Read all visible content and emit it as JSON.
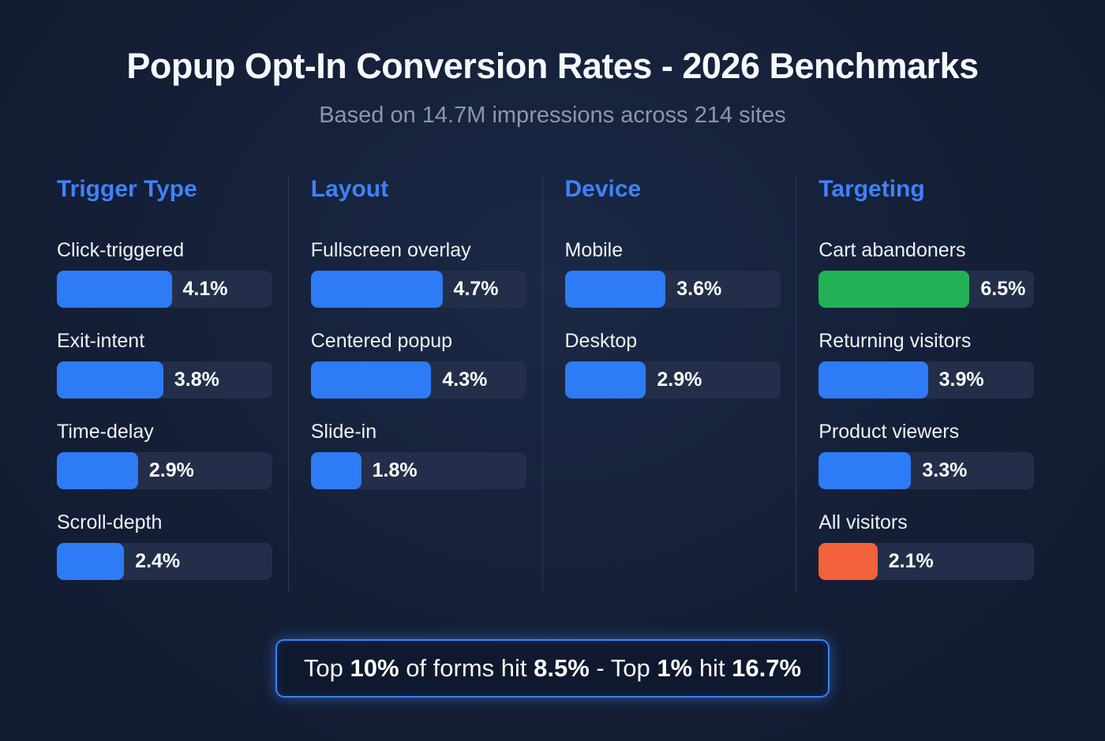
{
  "page": {
    "title": "Popup Opt-In Conversion Rates - 2026 Benchmarks",
    "subtitle": "Based on 14.7M impressions across 214 sites"
  },
  "colors": {
    "blue": "#2e7bf6",
    "green": "#22b155",
    "orange": "#f4613d",
    "accent": "#3b82f6",
    "track": "#232f4a",
    "heading": "#3f82f7",
    "background": "#141f37"
  },
  "chart_data": {
    "type": "bar",
    "title": "Popup Opt-In Conversion Rates - 2026 Benchmarks",
    "subtitle": "Based on 14.7M impressions across 214 sites",
    "unit": "%",
    "orientation": "horizontal",
    "groups": [
      {
        "name": "Trigger Type",
        "bars": [
          {
            "label": "Click-triggered",
            "value": 4.1,
            "display": "4.1%",
            "color": "blue"
          },
          {
            "label": "Exit-intent",
            "value": 3.8,
            "display": "3.8%",
            "color": "blue"
          },
          {
            "label": "Time-delay",
            "value": 2.9,
            "display": "2.9%",
            "color": "blue"
          },
          {
            "label": "Scroll-depth",
            "value": 2.4,
            "display": "2.4%",
            "color": "blue"
          }
        ]
      },
      {
        "name": "Layout",
        "bars": [
          {
            "label": "Fullscreen overlay",
            "value": 4.7,
            "display": "4.7%",
            "color": "blue"
          },
          {
            "label": "Centered popup",
            "value": 4.3,
            "display": "4.3%",
            "color": "blue"
          },
          {
            "label": "Slide-in",
            "value": 1.8,
            "display": "1.8%",
            "color": "blue"
          }
        ]
      },
      {
        "name": "Device",
        "bars": [
          {
            "label": "Mobile",
            "value": 3.6,
            "display": "3.6%",
            "color": "blue"
          },
          {
            "label": "Desktop",
            "value": 2.9,
            "display": "2.9%",
            "color": "blue"
          }
        ]
      },
      {
        "name": "Targeting",
        "bars": [
          {
            "label": "Cart abandoners",
            "value": 6.5,
            "display": "6.5%",
            "color": "green"
          },
          {
            "label": "Returning visitors",
            "value": 3.9,
            "display": "3.9%",
            "color": "blue"
          },
          {
            "label": "Product viewers",
            "value": 3.3,
            "display": "3.3%",
            "color": "blue"
          },
          {
            "label": "All visitors",
            "value": 2.1,
            "display": "2.1%",
            "color": "orange"
          }
        ]
      }
    ]
  },
  "footer": {
    "full_text": "Top 10% of forms hit 8.5% - Top 1% hit 16.7%",
    "segments": [
      {
        "text": "Top ",
        "bold": false
      },
      {
        "text": "10%",
        "bold": true
      },
      {
        "text": " of forms hit ",
        "bold": false
      },
      {
        "text": "8.5%",
        "bold": true
      },
      {
        "text": " - Top ",
        "bold": false
      },
      {
        "text": "1%",
        "bold": true
      },
      {
        "text": " hit ",
        "bold": false
      },
      {
        "text": "16.7%",
        "bold": true
      }
    ]
  }
}
